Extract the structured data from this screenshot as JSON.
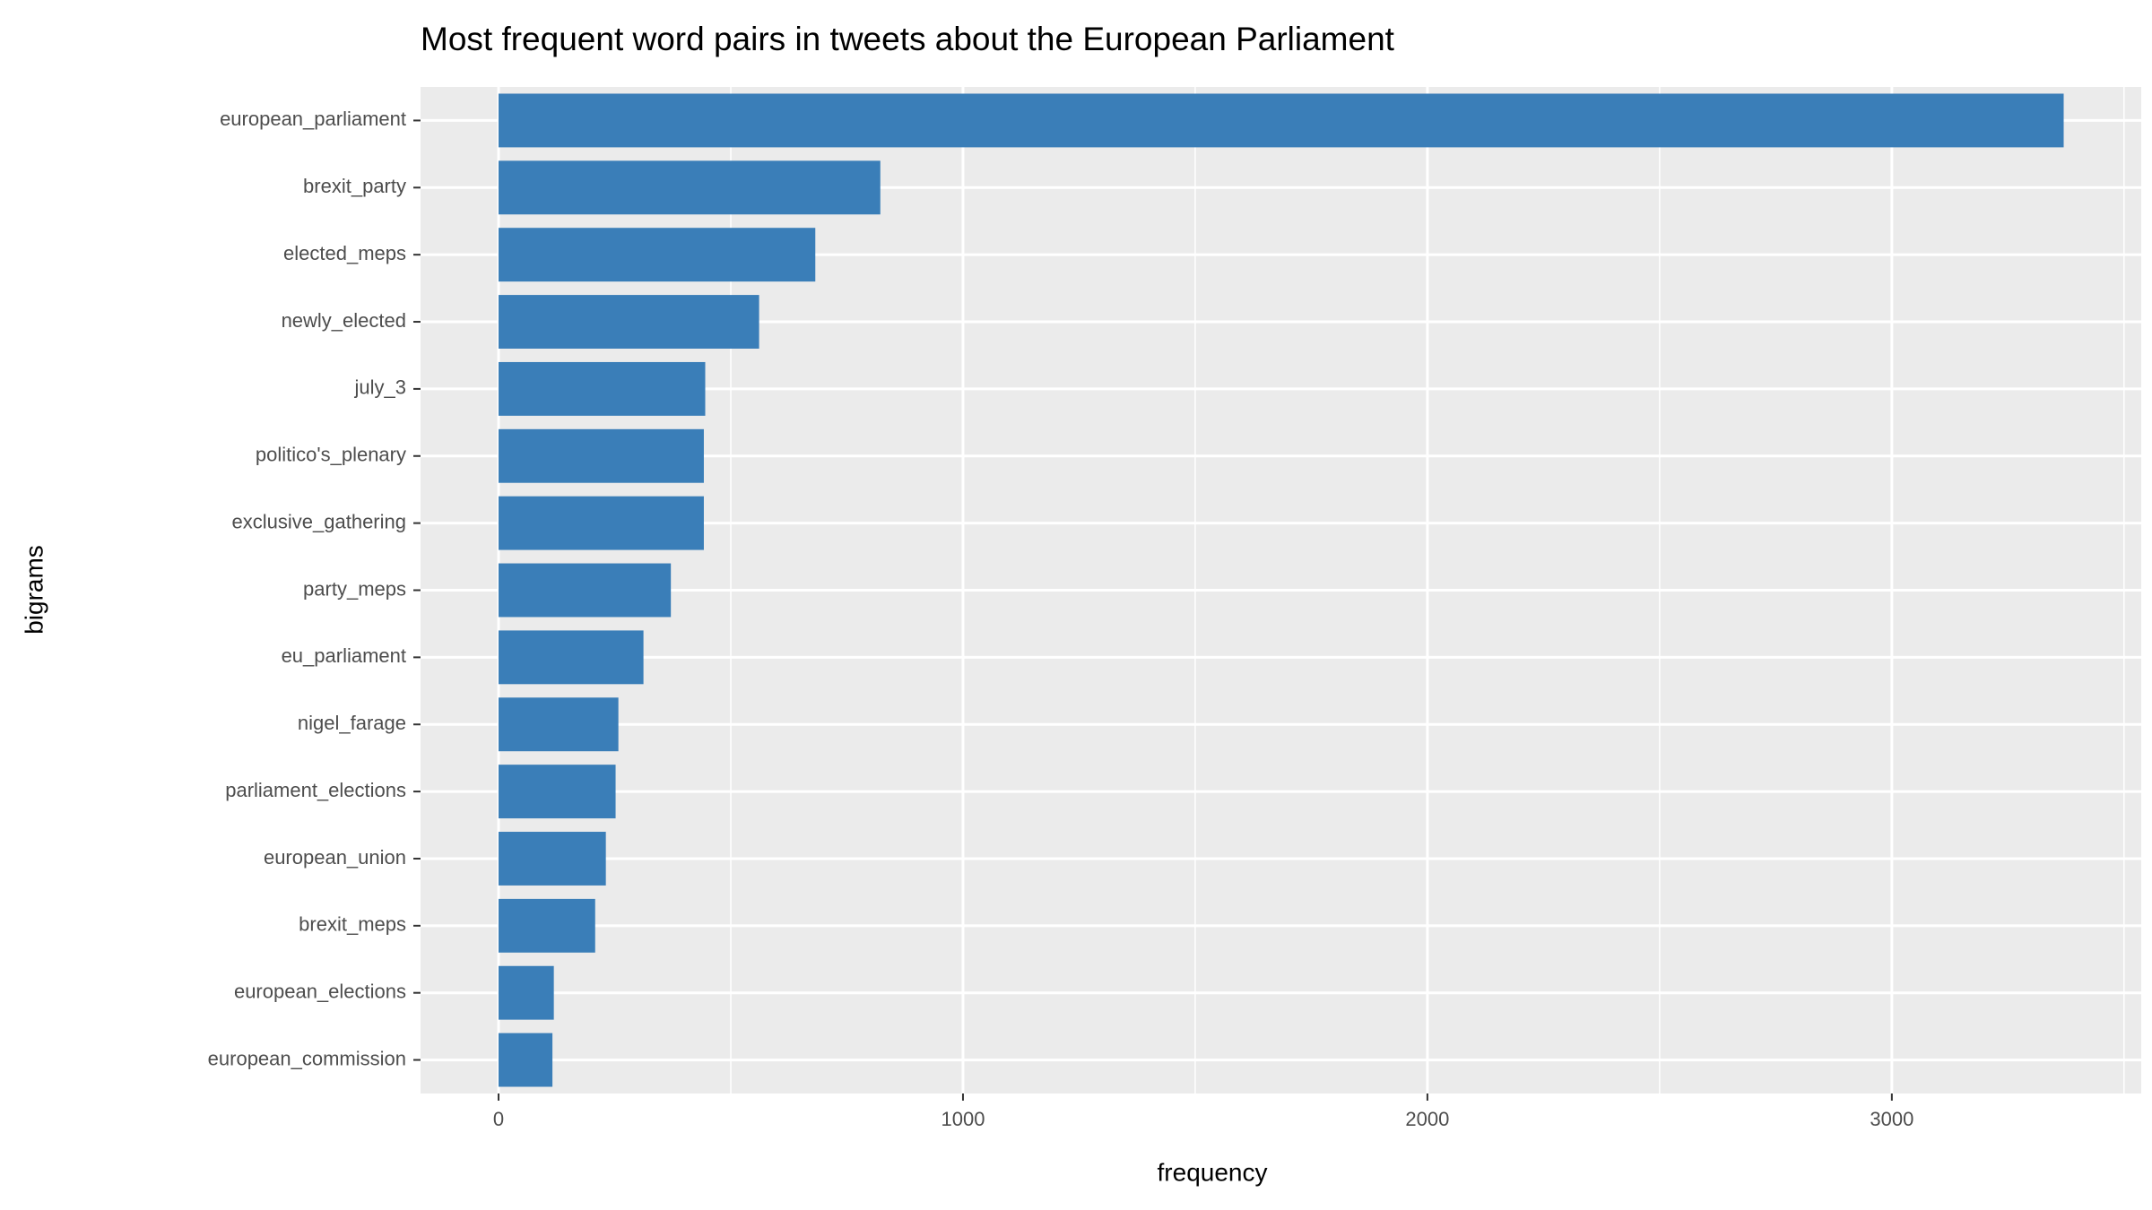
{
  "chart_data": {
    "type": "hbar",
    "title": "Most frequent word pairs in tweets about the European Parliament",
    "xlabel": "frequency",
    "ylabel": "bigrams",
    "categories": [
      "european_parliament",
      "brexit_party",
      "elected_meps",
      "newly_elected",
      "july_3",
      "politico's_plenary",
      "exclusive_gathering",
      "party_meps",
      "eu_parliament",
      "nigel_farage",
      "parliament_elections",
      "european_union",
      "brexit_meps",
      "european_elections",
      "european_commission"
    ],
    "values": [
      3370,
      822,
      682,
      561,
      445,
      442,
      442,
      371,
      312,
      258,
      252,
      231,
      208,
      119,
      116
    ],
    "color": "#3a7eb8",
    "xlim": [
      -168,
      3537
    ],
    "xticks": [
      0,
      1000,
      2000,
      3000
    ],
    "x_minor_grid": [
      500,
      1500,
      2500,
      3500
    ],
    "grid": true
  }
}
